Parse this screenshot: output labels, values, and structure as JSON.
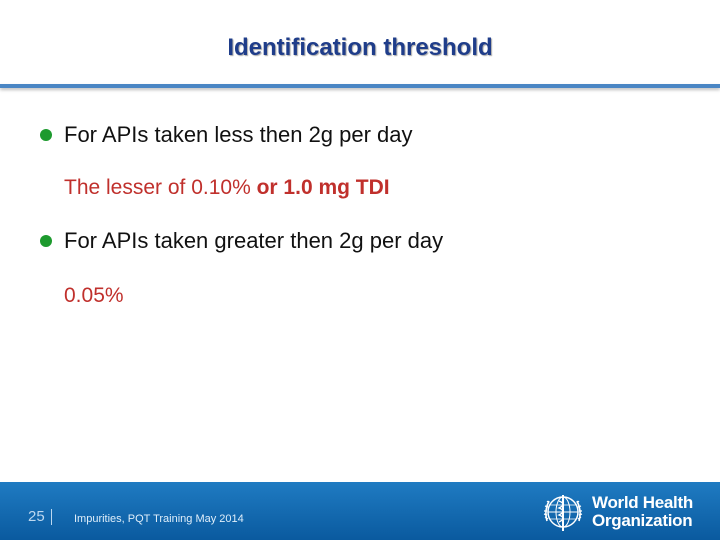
{
  "title": "Identification threshold",
  "bullets": [
    {
      "text": "For APIs taken less then 2g per day",
      "sub_plain": "The lesser of 0.10%",
      "sub_strong": " or 1.0 mg TDI"
    },
    {
      "text": "For APIs taken greater then 2g per day",
      "sub_plain": "0.05%",
      "sub_strong": ""
    }
  ],
  "footer": {
    "page_number": "25",
    "text": "Impurities,  PQT Training May 2014",
    "logo_line1": "World Health",
    "logo_line2": "Organization"
  },
  "colors": {
    "title": "#1f3d8a",
    "bullet_dot": "#1d9a2e",
    "highlight": "#c0302c",
    "footer_bar": "#0a5a9f"
  }
}
